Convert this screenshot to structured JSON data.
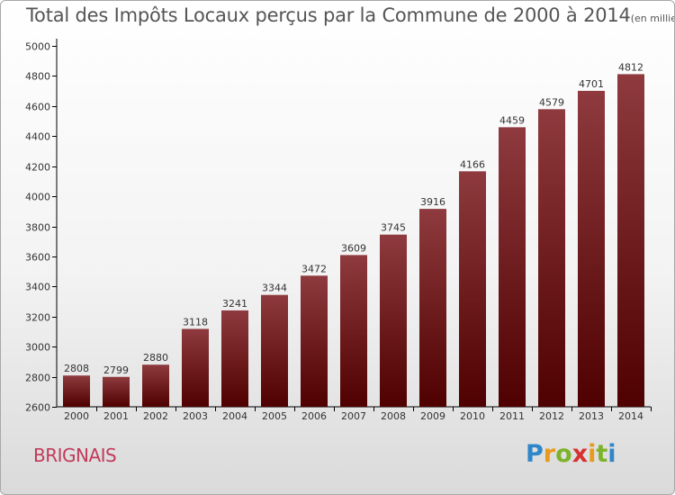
{
  "title": "Total des Impôts Locaux perçus par la Commune de 2000 à 2014",
  "subtitle": "(en milliers d'€)",
  "commune": "BRIGNAIS",
  "brand": {
    "letters": [
      "P",
      "r",
      "o",
      "x",
      "i",
      "t",
      "i"
    ],
    "colors": [
      "#2f86c9",
      "#e89a1c",
      "#7cb32a",
      "#d6312f",
      "#e89a1c",
      "#7cb32a",
      "#2f86c9"
    ]
  },
  "colors": {
    "bar_top": "#8e3a3e",
    "bar_bottom": "#4f0000",
    "axis": "#000000",
    "text": "#333333"
  },
  "chart_data": {
    "type": "bar",
    "title": "Total des Impôts Locaux perçus par la Commune de 2000 à 2014",
    "subtitle": "(en milliers d'€)",
    "categories": [
      "2000",
      "2001",
      "2002",
      "2003",
      "2004",
      "2005",
      "2006",
      "2007",
      "2008",
      "2009",
      "2010",
      "2011",
      "2012",
      "2013",
      "2014"
    ],
    "values": [
      2808,
      2799,
      2880,
      3118,
      3241,
      3344,
      3472,
      3609,
      3745,
      3916,
      4166,
      4459,
      4579,
      4701,
      4812
    ],
    "ylim": [
      2600,
      5000
    ],
    "yticks": [
      2600,
      2800,
      3000,
      3200,
      3400,
      3600,
      3800,
      4000,
      4200,
      4400,
      4600,
      4800,
      5000
    ],
    "xlabel": "",
    "ylabel": "",
    "grid": false,
    "legend": "none"
  }
}
